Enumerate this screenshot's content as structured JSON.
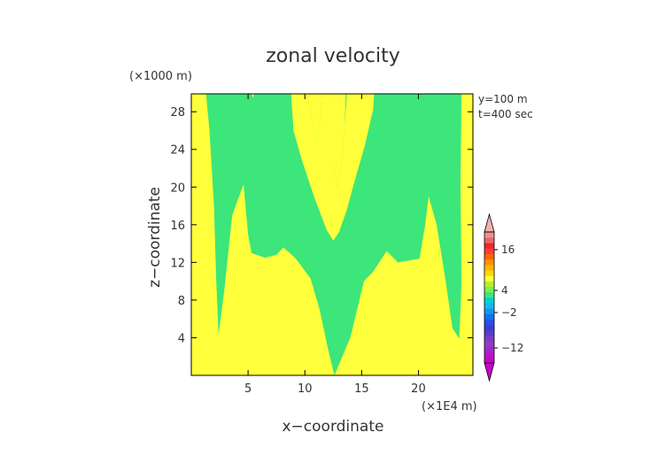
{
  "chart_data": {
    "type": "heatmap",
    "title": "zonal velocity",
    "xlabel": "x−coordinate",
    "ylabel": "z−coordinate",
    "x_unit": "(×1E4 m)",
    "y_unit": "(×1000 m)",
    "annotations": [
      "y=100 m",
      "t=400 sec"
    ],
    "xlim": [
      0,
      24.8
    ],
    "ylim": [
      0,
      29.9
    ],
    "x_ticks": [
      5,
      10,
      15,
      20
    ],
    "y_ticks": [
      4,
      8,
      12,
      16,
      20,
      24,
      28
    ],
    "colors": {
      "positive": "#ffff3c",
      "negative": "#3ce67a",
      "frame": "#000000"
    },
    "regions": [
      {
        "sign": "negative",
        "polygon": [
          [
            1.3,
            29.9
          ],
          [
            1.6,
            26
          ],
          [
            2.0,
            18
          ],
          [
            2.2,
            10
          ],
          [
            2.4,
            4.3
          ],
          [
            2.9,
            9
          ],
          [
            3.6,
            17
          ],
          [
            4.6,
            20.3
          ],
          [
            5.0,
            15
          ],
          [
            5.3,
            13.0
          ],
          [
            6.5,
            12.5
          ],
          [
            7.5,
            12.8
          ],
          [
            8.1,
            13.6
          ],
          [
            9.2,
            12.4
          ],
          [
            10.5,
            10.3
          ],
          [
            11.3,
            7.0
          ],
          [
            12.0,
            3.0
          ],
          [
            12.6,
            0
          ],
          [
            14.0,
            4.0
          ],
          [
            14.8,
            8.0
          ],
          [
            15.2,
            10.0
          ],
          [
            16.0,
            11.0
          ],
          [
            17.2,
            13.2
          ],
          [
            18.2,
            12.0
          ],
          [
            19.2,
            12.2
          ],
          [
            20.1,
            12.4
          ],
          [
            20.6,
            16
          ],
          [
            20.9,
            19.0
          ],
          [
            21.6,
            16
          ],
          [
            22.4,
            10
          ],
          [
            23.0,
            5
          ],
          [
            23.6,
            3.9
          ],
          [
            23.8,
            10
          ],
          [
            23.7,
            20
          ],
          [
            23.8,
            29.9
          ],
          [
            13.6,
            29.9
          ],
          [
            13.5,
            26.5
          ],
          [
            13.2,
            22.0
          ],
          [
            12.9,
            20.0
          ],
          [
            12.4,
            22.5
          ],
          [
            12.4,
            29.9
          ],
          [
            11.5,
            29.9
          ],
          [
            11.3,
            26.5
          ],
          [
            11.0,
            24.5
          ],
          [
            10.2,
            29.9
          ]
        ]
      },
      {
        "sign": "positive",
        "polygon": [
          [
            5.3,
            29.9
          ],
          [
            5.5,
            29.9
          ],
          [
            5.45,
            29.4
          ]
        ]
      },
      {
        "sign": "positive",
        "polygon": [
          [
            8.8,
            29.9
          ],
          [
            9.0,
            26
          ],
          [
            9.7,
            23
          ],
          [
            10.8,
            19
          ],
          [
            11.9,
            15.5
          ],
          [
            12.5,
            14.3
          ],
          [
            13.0,
            15.2
          ],
          [
            13.7,
            17.6
          ],
          [
            14.3,
            20.3
          ],
          [
            15.3,
            24.5
          ],
          [
            16.0,
            28.2
          ],
          [
            16.1,
            29.9
          ],
          [
            13.7,
            29.9
          ],
          [
            13.5,
            26.5
          ],
          [
            13.2,
            22.0
          ],
          [
            12.9,
            20.0
          ],
          [
            12.4,
            22.5
          ],
          [
            12.4,
            29.9
          ],
          [
            11.5,
            29.9
          ],
          [
            11.3,
            26.5
          ],
          [
            11.0,
            24.5
          ],
          [
            10.2,
            29.9
          ]
        ]
      }
    ],
    "colorbar": {
      "tick_labels": [
        "16",
        "4",
        "−2",
        "−12"
      ],
      "bands": [
        "#cc00cc",
        "#b814c8",
        "#a328c4",
        "#8f3cc0",
        "#7a3cc8",
        "#5a3cd0",
        "#3c3cdc",
        "#2850e8",
        "#1470f0",
        "#1496f0",
        "#14b8f0",
        "#00d2d2",
        "#3ce67a",
        "#7af050",
        "#b4f028",
        "#ffff3c",
        "#ffd800",
        "#ffb400",
        "#ff9000",
        "#ff6400",
        "#ff3c3c",
        "#ee2828",
        "#f06464",
        "#f09090"
      ],
      "end_colors": {
        "low": "#cc00cc",
        "high": "#f4b0b0"
      }
    }
  }
}
